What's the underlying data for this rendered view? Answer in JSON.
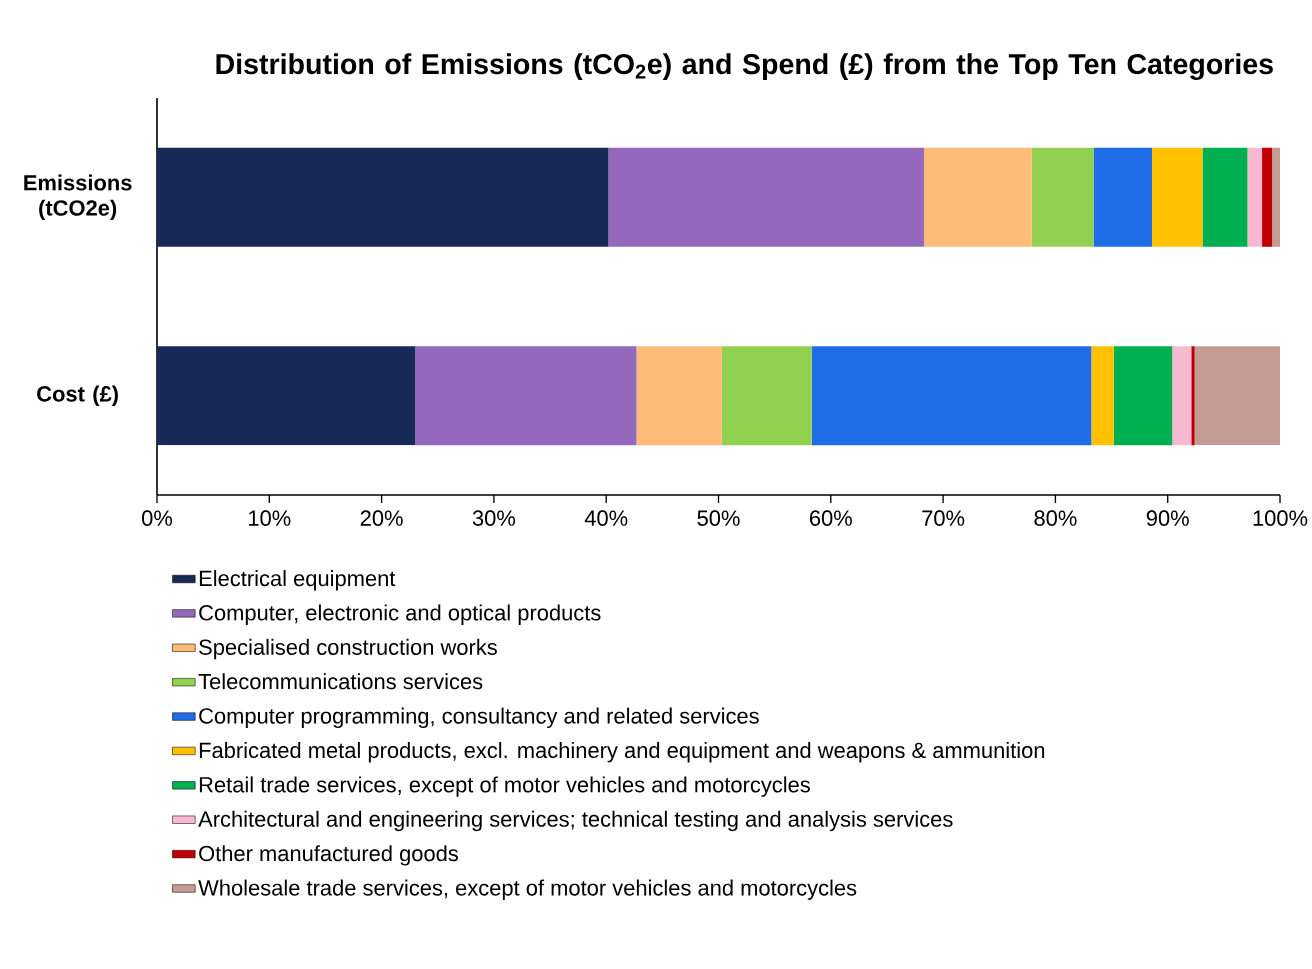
{
  "chart_data": {
    "type": "bar",
    "orientation": "horizontal",
    "stacked": true,
    "title": "Distribution of Emissions (tCO$_{2}$e) and Spend (£) from the Top Ten Categories",
    "categories": [
      "Emissions (tCO2e)",
      "Cost (£)"
    ],
    "xlim": [
      0,
      100
    ],
    "xticks": [
      {
        "value": 0,
        "label": "0%"
      },
      {
        "value": 10,
        "label": "10%"
      },
      {
        "value": 20,
        "label": "20%"
      },
      {
        "value": 30,
        "label": "30%"
      },
      {
        "value": 40,
        "label": "40%"
      },
      {
        "value": 50,
        "label": "50%"
      },
      {
        "value": 60,
        "label": "60%"
      },
      {
        "value": 70,
        "label": "70%"
      },
      {
        "value": 80,
        "label": "80%"
      },
      {
        "value": 90,
        "label": "90%"
      },
      {
        "value": 100,
        "label": "100%"
      }
    ],
    "legend": "bottom",
    "series": [
      {
        "name": "Electrical equipment",
        "color": "#172a57",
        "values": [
          40.2,
          23.0
        ]
      },
      {
        "name": "Computer, electronic and optical products",
        "color": "#9468bc",
        "values": [
          28.1,
          19.7
        ]
      },
      {
        "name": "Specialised construction works",
        "color": "#ffbb78",
        "values": [
          9.6,
          7.6
        ]
      },
      {
        "name": "Telecommunications services",
        "color": "#92d050",
        "values": [
          5.5,
          8.0
        ]
      },
      {
        "name": "Computer programming, consultancy and related services",
        "color": "#1f6be8",
        "values": [
          5.2,
          24.9
        ]
      },
      {
        "name": "Fabricated metal products, excl. machinery and equipment and weapons & ammunition",
        "color": "#ffc000",
        "values": [
          4.5,
          2.0
        ]
      },
      {
        "name": "Retail trade services, except of motor vehicles and motorcycles",
        "color": "#00b050",
        "values": [
          4.0,
          5.2
        ]
      },
      {
        "name": "Architectural and engineering services; technical testing and analysis services",
        "color": "#f7b8d2",
        "values": [
          1.3,
          1.7
        ]
      },
      {
        "name": "Other manufactured goods",
        "color": "#c00000",
        "values": [
          0.9,
          0.3
        ]
      },
      {
        "name": "Wholesale trade services, except of motor vehicles and motorcycles",
        "color": "#c49c94",
        "values": [
          0.7,
          7.6
        ]
      }
    ]
  }
}
